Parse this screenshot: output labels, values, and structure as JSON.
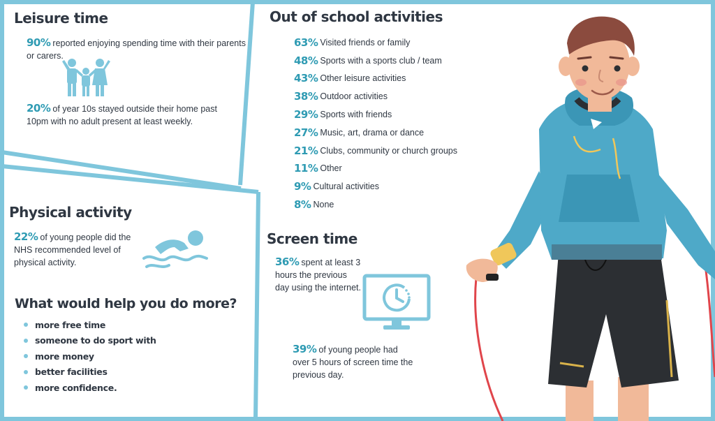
{
  "leisure": {
    "title": "Leisure time",
    "stat1": {
      "value": "90%",
      "text": "reported enjoying spending time with their parents or carers."
    },
    "stat2": {
      "value": "20%",
      "text": "of year 10s stayed outside their home past 10pm with no adult present at least weekly."
    },
    "icon": "family-icon"
  },
  "physical": {
    "title": "Physical activity",
    "stat": {
      "value": "22%",
      "text": "of young people did the NHS recommended level of physical activity."
    },
    "icon": "swimmer-icon"
  },
  "help": {
    "title": "What would help you do more?",
    "items": [
      "more free time",
      "someone to do sport with",
      "more money",
      "better facilities",
      "more confidence."
    ]
  },
  "out_of_school": {
    "title": "Out of school activities",
    "items": [
      {
        "value": "63%",
        "label": "Visited friends or family"
      },
      {
        "value": "48%",
        "label": "Sports with a sports club / team"
      },
      {
        "value": "43%",
        "label": "Other leisure activities"
      },
      {
        "value": "38%",
        "label": "Outdoor activities"
      },
      {
        "value": "29%",
        "label": "Sports with friends"
      },
      {
        "value": "27%",
        "label": "Music, art, drama or dance"
      },
      {
        "value": "21%",
        "label": "Clubs, community or church groups"
      },
      {
        "value": "11%",
        "label": "Other"
      },
      {
        "value": "9%",
        "label": "Cultural activities"
      },
      {
        "value": "8%",
        "label": "None"
      }
    ]
  },
  "screen": {
    "title": "Screen time",
    "stat1": {
      "value": "36%",
      "text": "spent at least 3 hours the previous day using the internet."
    },
    "stat2": {
      "value": "39%",
      "text": "of young people had over 5 hours of screen time the previous day."
    },
    "icon": "monitor-clock-icon"
  },
  "illustration": "boy-with-skipping-rope",
  "colors": {
    "accent": "#2f9bb3",
    "frame": "#7fc6dc",
    "text": "#2f3742",
    "hoodie": "#4ea9c8"
  }
}
